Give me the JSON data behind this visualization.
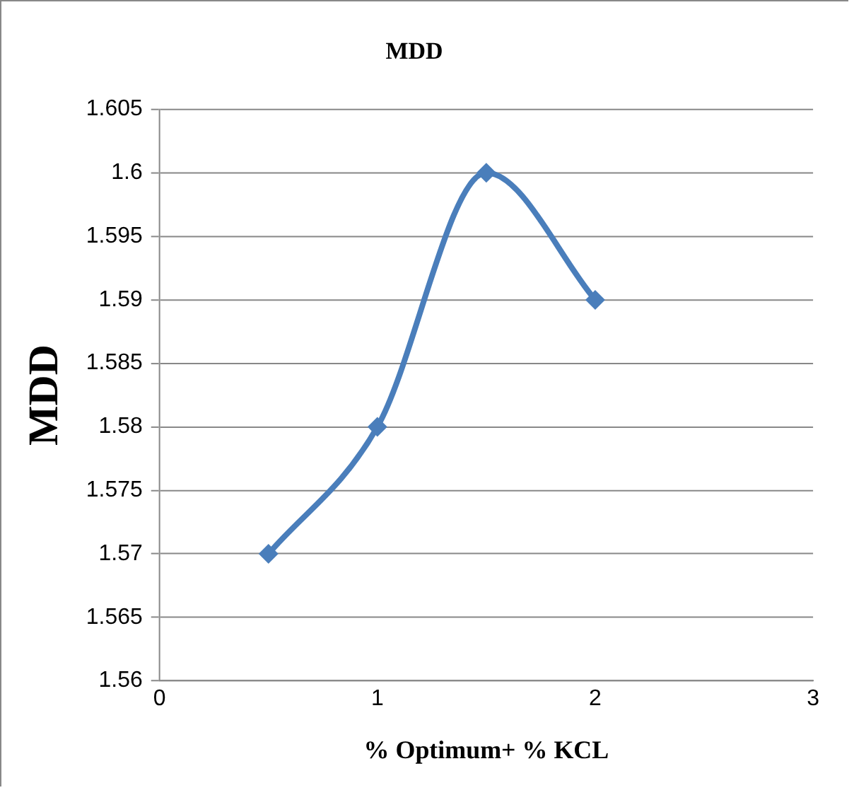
{
  "chart_data": {
    "type": "line",
    "title": "MDD",
    "xlabel": "% Optimum+ % KCL",
    "ylabel": "MDD",
    "x": [
      0.5,
      1,
      1.5,
      2
    ],
    "series": [
      {
        "color": "#4a7ebb",
        "values": [
          1.57,
          1.58,
          1.6,
          1.59
        ]
      }
    ],
    "xlim": [
      0,
      3
    ],
    "xticks": [
      0,
      1,
      2,
      3
    ],
    "ylim": [
      1.56,
      1.605
    ],
    "yticks": [
      1.56,
      1.565,
      1.57,
      1.575,
      1.58,
      1.585,
      1.59,
      1.595,
      1.6,
      1.605
    ],
    "grid": "y",
    "legend": false,
    "marker": "diamond",
    "line_style": "solid"
  }
}
